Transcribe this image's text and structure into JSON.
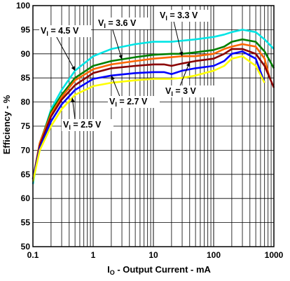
{
  "chart_data": {
    "type": "line",
    "xlabel_main": "I",
    "xlabel_sub": "O",
    "xlabel_rest": " - Output Current - mA",
    "ylabel": "Efficiency - %",
    "xscale": "log",
    "xlim": [
      0.1,
      1000
    ],
    "ylim": [
      50,
      100
    ],
    "grid": true,
    "x_ticks": [
      "0.1",
      "1",
      "10",
      "100",
      "1000"
    ],
    "y_ticks": [
      "50",
      "55",
      "60",
      "65",
      "70",
      "75",
      "80",
      "85",
      "90",
      "95",
      "100"
    ],
    "series": [
      {
        "name": "VI = 4.5 V",
        "label_main": "V",
        "label_sub": "I",
        "label_rest": " = 4.5 V",
        "color": "#00e5e5",
        "x": [
          0.1,
          0.13,
          0.2,
          0.3,
          0.5,
          1,
          2,
          5,
          10,
          20,
          50,
          100,
          150,
          200,
          300,
          500,
          700,
          1000
        ],
        "y": [
          63,
          71,
          78.5,
          82.5,
          86.5,
          89.5,
          91,
          92,
          92.5,
          92.5,
          93,
          93.5,
          94,
          94.5,
          95,
          94.5,
          93,
          91
        ]
      },
      {
        "name": "VI = 3.6 V",
        "label_main": "V",
        "label_sub": "I",
        "label_rest": " = 3.6 V",
        "color": "#008000",
        "x": [
          0.1,
          0.13,
          0.2,
          0.3,
          0.5,
          1,
          2,
          5,
          10,
          20,
          30,
          50,
          100,
          150,
          200,
          300,
          500,
          700,
          1000
        ],
        "y": [
          64,
          71.5,
          78,
          81.5,
          85,
          87.5,
          88.5,
          89.3,
          89.8,
          90,
          90,
          90.3,
          90.8,
          91.5,
          92.5,
          93,
          92.5,
          90.5,
          87
        ]
      },
      {
        "name": "VI = 3.3 V",
        "label_main": "V",
        "label_sub": "I",
        "label_rest": " = 3.3 V",
        "color": "#ff6600",
        "x": [
          0.1,
          0.13,
          0.2,
          0.3,
          0.5,
          1,
          2,
          5,
          10,
          20,
          30,
          50,
          100,
          150,
          200,
          300,
          500,
          700,
          850
        ],
        "y": [
          64,
          71.5,
          77.5,
          81,
          84.5,
          86.8,
          87.8,
          88.5,
          89,
          89.3,
          89.5,
          89.5,
          90,
          91,
          91.5,
          92,
          91.5,
          89,
          85
        ]
      },
      {
        "name": "VI = 3 V",
        "label_main": "V",
        "label_sub": "I",
        "label_rest": " = 3 V",
        "color": "#8b0000",
        "x": [
          0.1,
          0.13,
          0.2,
          0.3,
          0.5,
          1,
          2,
          5,
          10,
          15,
          20,
          30,
          50,
          100,
          150,
          200,
          300,
          500,
          700,
          1000
        ],
        "y": [
          64,
          71,
          77,
          80.5,
          83.5,
          86,
          87,
          87.5,
          87.8,
          87.8,
          87.5,
          88,
          88.5,
          89,
          90,
          91,
          91,
          90,
          87.5,
          83
        ]
      },
      {
        "name": "VI = 2.7 V",
        "label_main": "V",
        "label_sub": "I",
        "label_rest": " = 2.7 V",
        "color": "#0000ff",
        "x": [
          0.1,
          0.13,
          0.2,
          0.3,
          0.5,
          1,
          2,
          5,
          10,
          15,
          20,
          30,
          50,
          100,
          150,
          200,
          300,
          500,
          700
        ],
        "y": [
          64,
          70.5,
          76,
          79.5,
          82.5,
          84.8,
          85.5,
          86,
          86.2,
          86.2,
          85.8,
          86.5,
          87,
          87.5,
          88.5,
          90,
          90.5,
          89,
          84
        ]
      },
      {
        "name": "VI = 2.5 V",
        "label_main": "V",
        "label_sub": "I",
        "label_rest": " = 2.5 V",
        "color": "#ffff00",
        "x": [
          0.1,
          0.13,
          0.2,
          0.3,
          0.5,
          1,
          2,
          5,
          10,
          20,
          30,
          50,
          100,
          150,
          200,
          300,
          500,
          700
        ],
        "y": [
          63.5,
          70,
          75,
          78.5,
          81.5,
          83.3,
          84,
          84.5,
          84.8,
          84.8,
          85,
          85.5,
          86.5,
          87.5,
          89,
          89.5,
          87.5,
          84
        ]
      }
    ],
    "annotations": [
      {
        "series": "VI = 4.5 V",
        "at_x": 0.5
      },
      {
        "series": "VI = 3.6 V",
        "at_x": 3
      },
      {
        "series": "VI = 3.3 V",
        "at_x": 30
      },
      {
        "series": "VI = 3 V",
        "at_x": 40
      },
      {
        "series": "VI = 2.7 V",
        "at_x": 2
      },
      {
        "series": "VI = 2.5 V",
        "at_x": 0.45
      }
    ]
  }
}
